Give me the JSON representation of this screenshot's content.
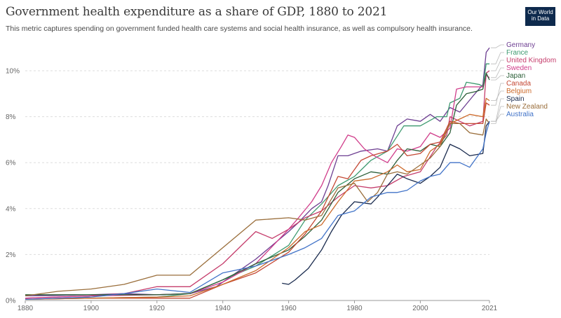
{
  "header": {
    "title": "Government health expenditure as a share of GDP, 1880 to 2021",
    "subtitle": "This metric captures spending on government funded health care systems and social health insurance, as well as compulsory health insurance.",
    "logo_line1": "Our World",
    "logo_line2": "in Data"
  },
  "chart_data": {
    "type": "line",
    "title": "Government health expenditure as a share of GDP, 1880 to 2021",
    "xlabel": "",
    "ylabel": "",
    "xlim": [
      1880,
      2021
    ],
    "ylim": [
      0,
      10
    ],
    "x_ticks": [
      1880,
      1900,
      1920,
      1940,
      1960,
      1980,
      2000,
      2021
    ],
    "y_ticks": [
      0,
      2,
      4,
      6,
      8,
      10
    ],
    "y_tick_labels": [
      "0%",
      "2%",
      "4%",
      "6%",
      "8%",
      "10%"
    ],
    "grid": true,
    "legend_placement": "right",
    "series": [
      {
        "name": "Germany",
        "color": "#6d3e91",
        "points": [
          [
            1880,
            0.2
          ],
          [
            1890,
            0.22
          ],
          [
            1900,
            0.25
          ],
          [
            1910,
            0.3
          ],
          [
            1920,
            0.25
          ],
          [
            1930,
            0.3
          ],
          [
            1938,
            0.6
          ],
          [
            1950,
            1.8
          ],
          [
            1960,
            3.0
          ],
          [
            1963,
            3.4
          ],
          [
            1967,
            4.0
          ],
          [
            1970,
            4.3
          ],
          [
            1972,
            5.0
          ],
          [
            1975,
            6.3
          ],
          [
            1978,
            6.3
          ],
          [
            1982,
            6.5
          ],
          [
            1987,
            6.6
          ],
          [
            1990,
            6.5
          ],
          [
            1993,
            7.6
          ],
          [
            1996,
            7.9
          ],
          [
            2000,
            7.8
          ],
          [
            2003,
            8.1
          ],
          [
            2006,
            7.8
          ],
          [
            2009,
            8.4
          ],
          [
            2012,
            8.2
          ],
          [
            2016,
            8.9
          ],
          [
            2019,
            9.4
          ],
          [
            2020,
            10.8
          ],
          [
            2021,
            11.0
          ]
        ]
      },
      {
        "name": "France",
        "color": "#3e9a70",
        "points": [
          [
            1880,
            0.05
          ],
          [
            1900,
            0.1
          ],
          [
            1920,
            0.15
          ],
          [
            1930,
            0.3
          ],
          [
            1950,
            1.5
          ],
          [
            1960,
            2.4
          ],
          [
            1965,
            3.5
          ],
          [
            1970,
            4.2
          ],
          [
            1975,
            5.0
          ],
          [
            1980,
            5.4
          ],
          [
            1985,
            6.1
          ],
          [
            1990,
            6.5
          ],
          [
            1995,
            7.6
          ],
          [
            2000,
            7.6
          ],
          [
            2005,
            8.0
          ],
          [
            2008,
            8.0
          ],
          [
            2009,
            8.6
          ],
          [
            2012,
            8.8
          ],
          [
            2014,
            9.5
          ],
          [
            2018,
            9.4
          ],
          [
            2019,
            9.3
          ],
          [
            2020,
            10.3
          ],
          [
            2021,
            10.3
          ]
        ]
      },
      {
        "name": "United Kingdom",
        "color": "#c53d6c",
        "points": [
          [
            1880,
            0.1
          ],
          [
            1900,
            0.2
          ],
          [
            1910,
            0.3
          ],
          [
            1920,
            0.6
          ],
          [
            1930,
            0.6
          ],
          [
            1940,
            1.6
          ],
          [
            1950,
            3.0
          ],
          [
            1955,
            2.7
          ],
          [
            1960,
            3.1
          ],
          [
            1965,
            3.6
          ],
          [
            1970,
            3.9
          ],
          [
            1975,
            4.5
          ],
          [
            1980,
            5.0
          ],
          [
            1985,
            4.9
          ],
          [
            1990,
            5.0
          ],
          [
            1995,
            5.4
          ],
          [
            2000,
            5.6
          ],
          [
            2005,
            6.7
          ],
          [
            2008,
            7.2
          ],
          [
            2009,
            8.0
          ],
          [
            2012,
            7.8
          ],
          [
            2015,
            7.6
          ],
          [
            2019,
            7.8
          ],
          [
            2020,
            9.9
          ],
          [
            2021,
            10.0
          ]
        ]
      },
      {
        "name": "Sweden",
        "color": "#d03c8a",
        "points": [
          [
            1880,
            0.1
          ],
          [
            1900,
            0.2
          ],
          [
            1920,
            0.25
          ],
          [
            1930,
            0.3
          ],
          [
            1940,
            0.8
          ],
          [
            1950,
            1.6
          ],
          [
            1960,
            3.1
          ],
          [
            1963,
            3.6
          ],
          [
            1967,
            4.3
          ],
          [
            1970,
            5.0
          ],
          [
            1973,
            6.0
          ],
          [
            1976,
            6.7
          ],
          [
            1978,
            7.2
          ],
          [
            1980,
            7.1
          ],
          [
            1983,
            6.6
          ],
          [
            1986,
            6.3
          ],
          [
            1990,
            6.0
          ],
          [
            1993,
            6.6
          ],
          [
            1996,
            6.5
          ],
          [
            2000,
            6.7
          ],
          [
            2003,
            7.3
          ],
          [
            2006,
            7.1
          ],
          [
            2009,
            7.5
          ],
          [
            2011,
            9.2
          ],
          [
            2014,
            9.3
          ],
          [
            2017,
            9.3
          ],
          [
            2019,
            9.3
          ],
          [
            2020,
            9.8
          ],
          [
            2021,
            9.7
          ]
        ]
      },
      {
        "name": "Japan",
        "color": "#2c5e38",
        "points": [
          [
            1880,
            0.25
          ],
          [
            1900,
            0.25
          ],
          [
            1920,
            0.25
          ],
          [
            1930,
            0.3
          ],
          [
            1940,
            0.9
          ],
          [
            1950,
            1.6
          ],
          [
            1960,
            2.2
          ],
          [
            1965,
            2.8
          ],
          [
            1970,
            3.5
          ],
          [
            1975,
            4.7
          ],
          [
            1980,
            5.3
          ],
          [
            1985,
            5.6
          ],
          [
            1990,
            5.5
          ],
          [
            1993,
            6.1
          ],
          [
            1996,
            6.6
          ],
          [
            2000,
            6.5
          ],
          [
            2003,
            6.8
          ],
          [
            2006,
            6.7
          ],
          [
            2009,
            7.3
          ],
          [
            2011,
            8.5
          ],
          [
            2014,
            9.0
          ],
          [
            2017,
            9.1
          ],
          [
            2019,
            9.2
          ],
          [
            2020,
            9.9
          ],
          [
            2021,
            9.6
          ]
        ]
      },
      {
        "name": "Canada",
        "color": "#c44834",
        "points": [
          [
            1880,
            0.05
          ],
          [
            1900,
            0.1
          ],
          [
            1920,
            0.1
          ],
          [
            1930,
            0.1
          ],
          [
            1940,
            0.7
          ],
          [
            1950,
            1.2
          ],
          [
            1960,
            2.1
          ],
          [
            1965,
            2.9
          ],
          [
            1970,
            3.9
          ],
          [
            1975,
            5.4
          ],
          [
            1978,
            5.3
          ],
          [
            1982,
            6.1
          ],
          [
            1985,
            6.3
          ],
          [
            1990,
            6.5
          ],
          [
            1993,
            6.8
          ],
          [
            1996,
            6.3
          ],
          [
            2000,
            6.4
          ],
          [
            2003,
            6.8
          ],
          [
            2006,
            6.9
          ],
          [
            2009,
            7.8
          ],
          [
            2012,
            7.7
          ],
          [
            2015,
            7.7
          ],
          [
            2019,
            7.7
          ],
          [
            2020,
            8.6
          ],
          [
            2021,
            8.5
          ]
        ]
      },
      {
        "name": "Belgium",
        "color": "#cc6a2b",
        "points": [
          [
            1880,
            0.05
          ],
          [
            1900,
            0.1
          ],
          [
            1920,
            0.15
          ],
          [
            1930,
            0.2
          ],
          [
            1940,
            0.7
          ],
          [
            1950,
            1.3
          ],
          [
            1960,
            2.3
          ],
          [
            1965,
            3.0
          ],
          [
            1970,
            3.3
          ],
          [
            1975,
            4.3
          ],
          [
            1980,
            5.2
          ],
          [
            1985,
            5.3
          ],
          [
            1990,
            5.6
          ],
          [
            1993,
            5.9
          ],
          [
            1996,
            5.6
          ],
          [
            2000,
            5.7
          ],
          [
            2003,
            6.5
          ],
          [
            2006,
            6.8
          ],
          [
            2009,
            7.7
          ],
          [
            2012,
            7.9
          ],
          [
            2015,
            8.1
          ],
          [
            2019,
            8.0
          ],
          [
            2020,
            8.8
          ],
          [
            2021,
            8.7
          ]
        ]
      },
      {
        "name": "Spain",
        "color": "#1a2b4e",
        "points": [
          [
            1958,
            0.75
          ],
          [
            1960,
            0.7
          ],
          [
            1962,
            0.9
          ],
          [
            1966,
            1.4
          ],
          [
            1970,
            2.2
          ],
          [
            1973,
            3.0
          ],
          [
            1976,
            3.7
          ],
          [
            1980,
            4.3
          ],
          [
            1985,
            4.2
          ],
          [
            1987,
            4.5
          ],
          [
            1990,
            5.0
          ],
          [
            1993,
            5.5
          ],
          [
            1996,
            5.3
          ],
          [
            2000,
            5.1
          ],
          [
            2003,
            5.4
          ],
          [
            2006,
            5.8
          ],
          [
            2009,
            6.8
          ],
          [
            2012,
            6.6
          ],
          [
            2015,
            6.3
          ],
          [
            2019,
            6.4
          ],
          [
            2020,
            7.6
          ],
          [
            2021,
            7.8
          ]
        ]
      },
      {
        "name": "New Zealand",
        "color": "#9a6e3b",
        "points": [
          [
            1880,
            0.2
          ],
          [
            1890,
            0.4
          ],
          [
            1900,
            0.5
          ],
          [
            1910,
            0.7
          ],
          [
            1920,
            1.1
          ],
          [
            1930,
            1.1
          ],
          [
            1940,
            2.3
          ],
          [
            1950,
            3.5
          ],
          [
            1960,
            3.6
          ],
          [
            1965,
            3.5
          ],
          [
            1970,
            3.7
          ],
          [
            1975,
            4.9
          ],
          [
            1980,
            5.1
          ],
          [
            1984,
            4.3
          ],
          [
            1987,
            4.7
          ],
          [
            1990,
            5.5
          ],
          [
            1993,
            5.6
          ],
          [
            1996,
            5.5
          ],
          [
            2000,
            5.9
          ],
          [
            2003,
            6.2
          ],
          [
            2006,
            6.7
          ],
          [
            2009,
            7.7
          ],
          [
            2012,
            7.7
          ],
          [
            2015,
            7.3
          ],
          [
            2019,
            7.2
          ],
          [
            2020,
            7.9
          ],
          [
            2021,
            7.7
          ]
        ]
      },
      {
        "name": "Australia",
        "color": "#4173c8",
        "points": [
          [
            1880,
            0.05
          ],
          [
            1900,
            0.15
          ],
          [
            1910,
            0.3
          ],
          [
            1920,
            0.5
          ],
          [
            1930,
            0.35
          ],
          [
            1940,
            1.2
          ],
          [
            1950,
            1.5
          ],
          [
            1960,
            2.0
          ],
          [
            1965,
            2.3
          ],
          [
            1970,
            2.7
          ],
          [
            1975,
            3.7
          ],
          [
            1980,
            3.9
          ],
          [
            1985,
            4.5
          ],
          [
            1990,
            4.7
          ],
          [
            1993,
            4.7
          ],
          [
            1996,
            4.8
          ],
          [
            2000,
            5.2
          ],
          [
            2003,
            5.4
          ],
          [
            2006,
            5.5
          ],
          [
            2009,
            6.0
          ],
          [
            2012,
            6.0
          ],
          [
            2015,
            5.8
          ],
          [
            2019,
            6.6
          ],
          [
            2020,
            7.3
          ],
          [
            2021,
            7.8
          ]
        ]
      }
    ]
  }
}
